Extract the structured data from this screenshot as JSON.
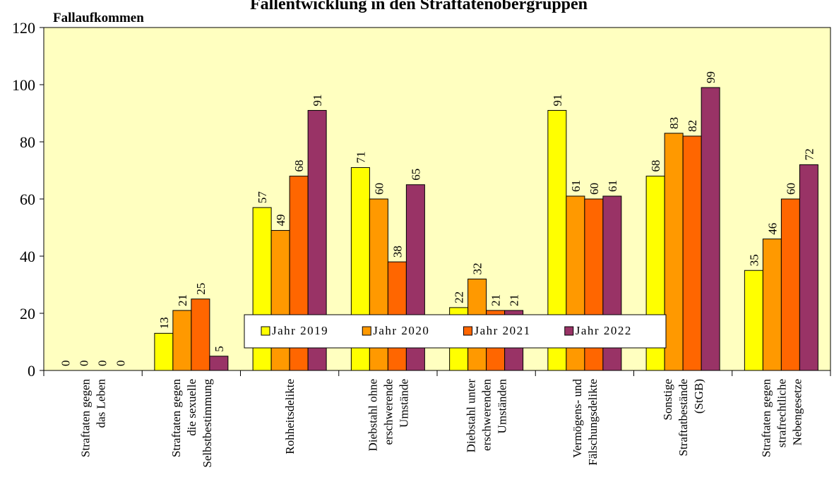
{
  "chart_data": {
    "type": "bar",
    "title": "Fallentwicklung in den Straftatenobergruppen",
    "ylabel": "Fallaufkommen",
    "xlabel": "",
    "ylim": [
      0,
      120
    ],
    "yticks": [
      0,
      20,
      40,
      60,
      80,
      100,
      120
    ],
    "grid": false,
    "legend_position": "inside, lower middle",
    "plot_background": "#FFFFC0",
    "categories": [
      [
        "Straftaten gegen",
        "das Leben"
      ],
      [
        "Straftaten gegen",
        "die sexuelle",
        "Selbstbestimmung"
      ],
      [
        "Rohheitsdelikte"
      ],
      [
        "Diebstahl ohne",
        "erschwerende",
        "Umstände"
      ],
      [
        "Diebstahl unter",
        "erschwerenden",
        "Umständen"
      ],
      [
        "Vermögens- und",
        "Fälschungsdelikte"
      ],
      [
        "Sonstige",
        "Straftatbestände",
        "(StGB)"
      ],
      [
        "Straftaten gegen",
        "strafrechtliche",
        "Nebengesetze"
      ]
    ],
    "series": [
      {
        "name": "Jahr 2019",
        "color": "#FFFF00",
        "values": [
          0,
          13,
          57,
          71,
          22,
          91,
          68,
          35
        ]
      },
      {
        "name": "Jahr 2020",
        "color": "#FF9900",
        "values": [
          0,
          21,
          49,
          60,
          32,
          61,
          83,
          46
        ]
      },
      {
        "name": "Jahr 2021",
        "color": "#FF6600",
        "values": [
          0,
          25,
          68,
          38,
          21,
          60,
          82,
          60
        ]
      },
      {
        "name": "Jahr 2022",
        "color": "#993366",
        "values": [
          0,
          5,
          91,
          65,
          21,
          61,
          99,
          72
        ]
      }
    ]
  }
}
